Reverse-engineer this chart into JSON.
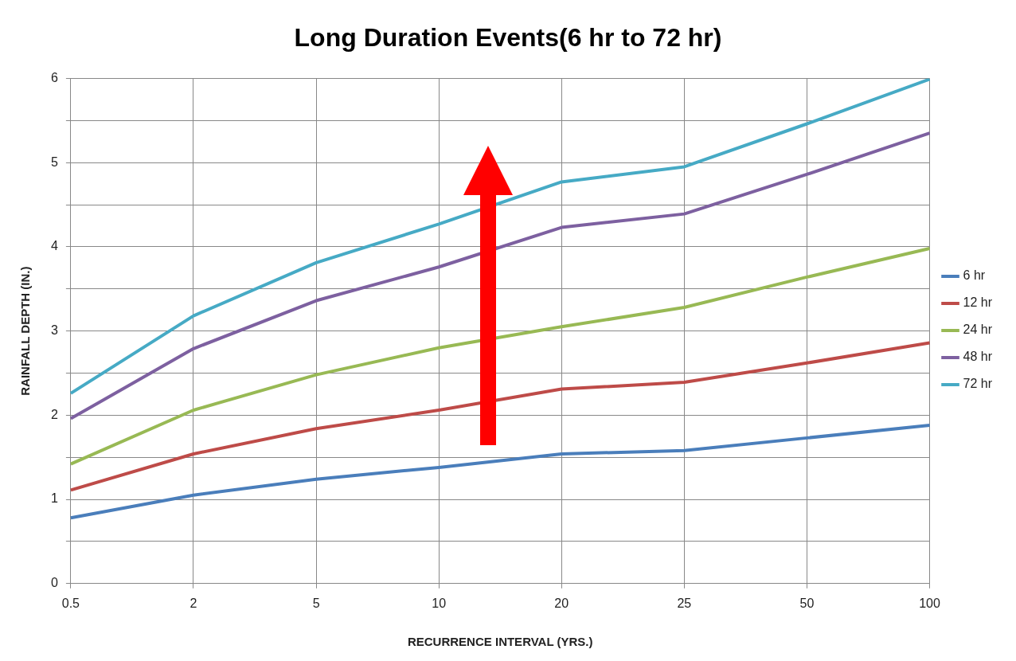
{
  "chart_data": {
    "type": "line",
    "title": "Long Duration Events(6 hr to 72 hr)",
    "xlabel": "RECURRENCE INTERVAL (YRS.)",
    "ylabel": "RAINFALL DEPTH (IN.)",
    "categories": [
      "0.5",
      "2",
      "5",
      "10",
      "20",
      "25",
      "50",
      "100"
    ],
    "series": [
      {
        "name": "6 hr",
        "color": "#4a7ebb",
        "values": [
          0.78,
          1.05,
          1.24,
          1.38,
          1.54,
          1.58,
          1.73,
          1.88
        ]
      },
      {
        "name": "12 hr",
        "color": "#be4b48",
        "values": [
          1.11,
          1.54,
          1.84,
          2.06,
          2.31,
          2.39,
          2.62,
          2.86
        ]
      },
      {
        "name": "24 hr",
        "color": "#98b954",
        "values": [
          1.42,
          2.06,
          2.48,
          2.8,
          3.05,
          3.28,
          3.64,
          3.98
        ]
      },
      {
        "name": "48 hr",
        "color": "#7d60a0",
        "values": [
          1.96,
          2.79,
          3.36,
          3.76,
          4.23,
          4.39,
          4.86,
          5.35
        ]
      },
      {
        "name": "72 hr",
        "color": "#46aac5",
        "values": [
          2.26,
          3.18,
          3.81,
          4.27,
          4.77,
          4.95,
          5.46,
          5.99
        ]
      }
    ],
    "ylim": [
      0,
      6
    ],
    "yticks": [
      0,
      {
        "value": 0.5,
        "label": null
      },
      1,
      {
        "value": 1.5,
        "label": null
      },
      2,
      {
        "value": 2.5,
        "label": null
      },
      3,
      {
        "value": 3.5,
        "label": null
      },
      4,
      {
        "value": 4.5,
        "label": null
      },
      5,
      {
        "value": 5.5,
        "label": null
      },
      6
    ],
    "grid": true,
    "legend": "right",
    "marker": "none",
    "line_style": "solid"
  }
}
